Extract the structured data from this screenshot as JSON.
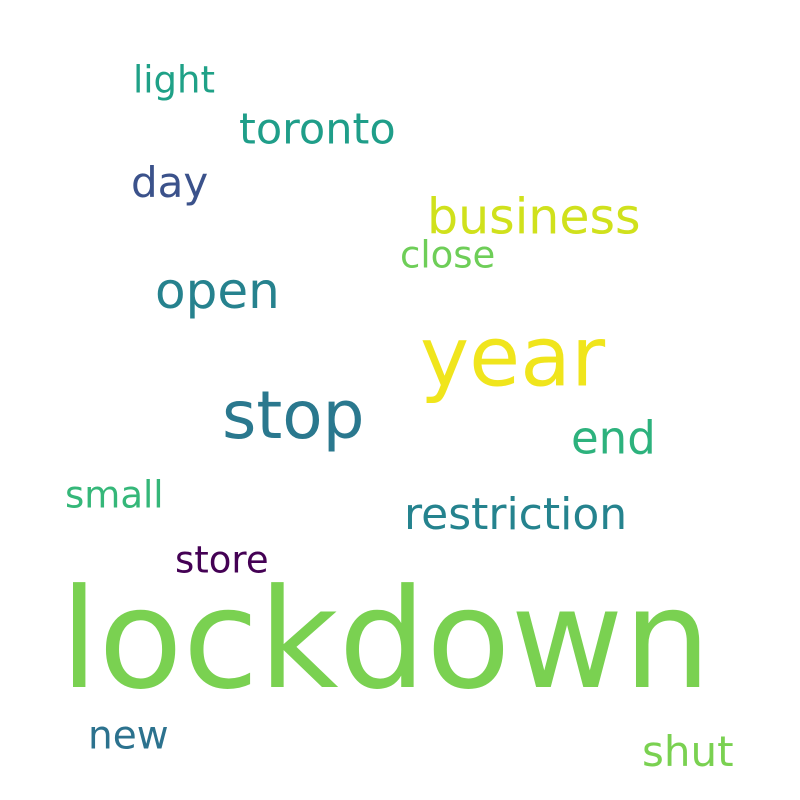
{
  "words": [
    {
      "text": "light",
      "color": "#1fa187"
    },
    {
      "text": "toronto",
      "color": "#1f9e89"
    },
    {
      "text": "day",
      "color": "#3b528b"
    },
    {
      "text": "business",
      "color": "#d0e11c"
    },
    {
      "text": "close",
      "color": "#6ece58"
    },
    {
      "text": "open",
      "color": "#26828e"
    },
    {
      "text": "year",
      "color": "#f0e51c"
    },
    {
      "text": "stop",
      "color": "#2a788e"
    },
    {
      "text": "end",
      "color": "#2db27d"
    },
    {
      "text": "small",
      "color": "#35b779"
    },
    {
      "text": "restriction",
      "color": "#25838e"
    },
    {
      "text": "store",
      "color": "#440154"
    },
    {
      "text": "lockdown",
      "color": "#7ad151"
    },
    {
      "text": "new",
      "color": "#2c728e"
    },
    {
      "text": "shut",
      "color": "#7ad151"
    }
  ]
}
